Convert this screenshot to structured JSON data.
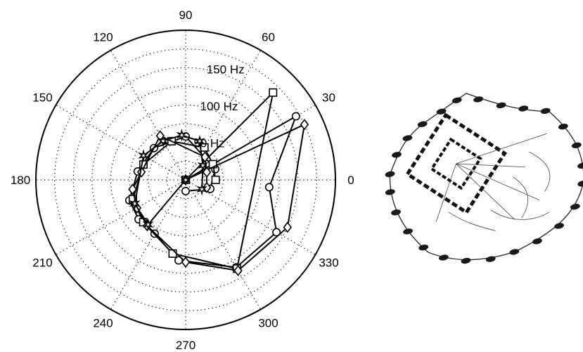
{
  "chart_data": {
    "type": "scatter",
    "polar": true,
    "title": "",
    "angle_unit": "degrees",
    "angle_tick_labels": [
      "0",
      "30",
      "60",
      "90",
      "120",
      "150",
      "180",
      "210",
      "240",
      "270",
      "300",
      "330"
    ],
    "radial_tick_labels": [
      "50 Hz",
      "100 Hz",
      "150 Hz"
    ],
    "radial_ticks": [
      25,
      50,
      75,
      100,
      125,
      150,
      175
    ],
    "rlim": [
      0,
      200
    ],
    "grid": true,
    "legend": "none",
    "series": [
      {
        "marker": "circle",
        "points": [
          {
            "theta": 0,
            "r": 0
          },
          {
            "theta": 30,
            "r": 170
          },
          {
            "theta": 355,
            "r": 112
          },
          {
            "theta": 330,
            "r": 140
          },
          {
            "theta": 300,
            "r": 135
          },
          {
            "theta": 265,
            "r": 108
          },
          {
            "theta": 240,
            "r": 83
          },
          {
            "theta": 220,
            "r": 82
          },
          {
            "theta": 200,
            "r": 80
          },
          {
            "theta": 170,
            "r": 65
          },
          {
            "theta": 135,
            "r": 60
          },
          {
            "theta": 90,
            "r": 58
          },
          {
            "theta": 20,
            "r": 42
          },
          {
            "theta": 340,
            "r": 35
          },
          {
            "theta": 270,
            "r": 15
          }
        ]
      },
      {
        "marker": "square",
        "points": [
          {
            "theta": 0,
            "r": 0
          },
          {
            "theta": 45,
            "r": 165
          },
          {
            "theta": 300,
            "r": 137
          },
          {
            "theta": 260,
            "r": 100
          },
          {
            "theta": 225,
            "r": 80
          },
          {
            "theta": 200,
            "r": 75
          },
          {
            "theta": 160,
            "r": 60
          },
          {
            "theta": 110,
            "r": 55
          },
          {
            "theta": 60,
            "r": 50
          },
          {
            "theta": 30,
            "r": 42
          },
          {
            "theta": 0,
            "r": 40
          }
        ]
      },
      {
        "marker": "diamond",
        "points": [
          {
            "theta": 0,
            "r": 0
          },
          {
            "theta": 25,
            "r": 175
          },
          {
            "theta": 335,
            "r": 150
          },
          {
            "theta": 300,
            "r": 140
          },
          {
            "theta": 270,
            "r": 110
          },
          {
            "theta": 230,
            "r": 80
          },
          {
            "theta": 210,
            "r": 75
          },
          {
            "theta": 190,
            "r": 72
          },
          {
            "theta": 170,
            "r": 60
          },
          {
            "theta": 120,
            "r": 68
          },
          {
            "theta": 50,
            "r": 40
          },
          {
            "theta": 20,
            "r": 30
          },
          {
            "theta": 340,
            "r": 30
          }
        ]
      },
      {
        "marker": "star",
        "points": [
          {
            "theta": 0,
            "r": 0
          },
          {
            "theta": 230,
            "r": 78
          },
          {
            "theta": 205,
            "r": 75
          },
          {
            "theta": 150,
            "r": 65
          },
          {
            "theta": 120,
            "r": 60
          },
          {
            "theta": 95,
            "r": 60
          },
          {
            "theta": 70,
            "r": 55
          },
          {
            "theta": 40,
            "r": 30
          },
          {
            "theta": 330,
            "r": 25
          }
        ]
      }
    ]
  },
  "image_panel": {
    "description_icon": "lace-doily-drawing-icon"
  }
}
